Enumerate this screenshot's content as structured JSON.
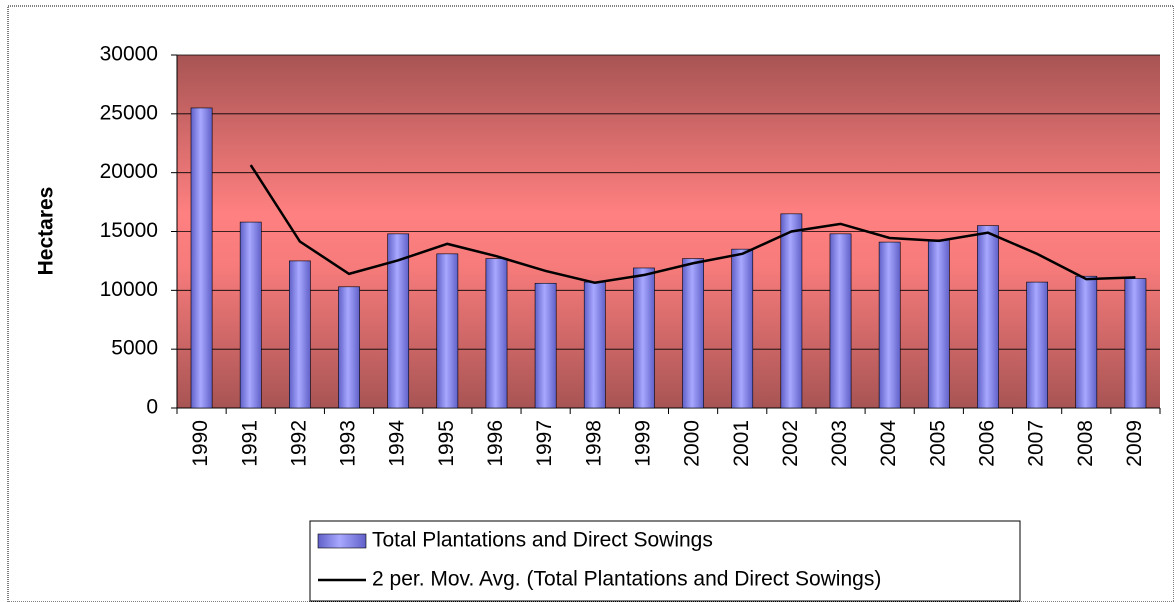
{
  "chart_data": {
    "type": "bar",
    "y_label": "Hectares",
    "categories": [
      "1990",
      "1991",
      "1992",
      "1993",
      "1994",
      "1995",
      "1996",
      "1997",
      "1998",
      "1999",
      "2000",
      "2001",
      "2002",
      "2003",
      "2004",
      "2005",
      "2006",
      "2007",
      "2008",
      "2009"
    ],
    "series": [
      {
        "name": "Total Plantations and Direct Sowings",
        "type": "bar",
        "color": "#9999ff",
        "values": [
          25500,
          15800,
          12500,
          10300,
          14800,
          13100,
          12700,
          10600,
          10700,
          11900,
          12700,
          13500,
          16500,
          14800,
          14100,
          14300,
          15500,
          10700,
          11200,
          11000
        ]
      },
      {
        "name": "2 per. Mov. Avg. (Total Plantations and Direct Sowings)",
        "type": "line",
        "color": "#000000",
        "values": [
          null,
          20650,
          14150,
          11400,
          12550,
          13950,
          12900,
          11650,
          10650,
          11300,
          12300,
          13100,
          15000,
          15650,
          14450,
          14200,
          14900,
          13100,
          10950,
          11100
        ]
      }
    ],
    "ylim": [
      0,
      30000
    ],
    "yticks": [
      0,
      5000,
      10000,
      15000,
      20000,
      25000,
      30000
    ],
    "grid": true
  }
}
